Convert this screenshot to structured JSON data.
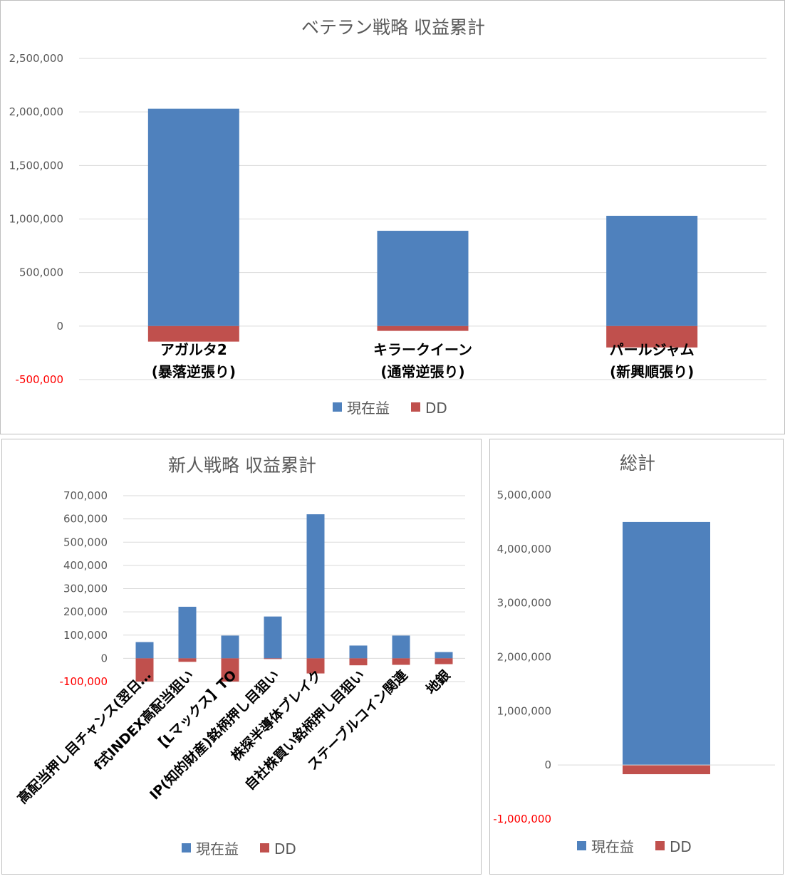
{
  "colors": {
    "profit": "#4f81bd",
    "dd": "#c0504d",
    "negative_tick": "#ff0000"
  },
  "chart_data": [
    {
      "id": "veteran",
      "type": "bar",
      "stacked": true,
      "title": "ベテラン戦略 収益累計",
      "categories": [
        [
          "アガルタ2",
          "(暴落逆張り)"
        ],
        [
          "キラークイーン",
          "(通常逆張り)"
        ],
        [
          "パールジャム",
          "(新興順張り)"
        ]
      ],
      "series": [
        {
          "name": "現在益",
          "values": [
            2030000,
            890000,
            1030000
          ]
        },
        {
          "name": "DD",
          "values": [
            -145000,
            -45000,
            -200000
          ]
        }
      ],
      "ylim": [
        -500000,
        2500000
      ],
      "yticks": [
        "-500,000",
        "0",
        "500,000",
        "1,000,000",
        "1,500,000",
        "2,000,000",
        "2,500,000"
      ],
      "ytick_values": [
        -500000,
        0,
        500000,
        1000000,
        1500000,
        2000000,
        2500000
      ],
      "grid": true,
      "legend": "bottom"
    },
    {
      "id": "newcomer",
      "type": "bar",
      "stacked": true,
      "title": "新人戦略 収益累計",
      "categories": [
        "高配当押し目チャンス(翌日…",
        "f式INDEX高配当狙い",
        "【Lマックス】TO",
        "IP(知的財産)銘柄押し目狙い",
        "株探半導体ブレイク",
        "自社株買い銘柄押し目狙い",
        "ステーブルコイン関連",
        "地銀"
      ],
      "series": [
        {
          "name": "現在益",
          "values": [
            70000,
            222000,
            98000,
            180000,
            620000,
            55000,
            98000,
            27000
          ]
        },
        {
          "name": "DD",
          "values": [
            -100000,
            -15000,
            -100000,
            -3000,
            -65000,
            -30000,
            -28000,
            -25000
          ]
        }
      ],
      "ylim": [
        -100000,
        700000
      ],
      "yticks": [
        "-100,000",
        "0",
        "100,000",
        "200,000",
        "300,000",
        "400,000",
        "500,000",
        "600,000",
        "700,000"
      ],
      "ytick_values": [
        -100000,
        0,
        100000,
        200000,
        300000,
        400000,
        500000,
        600000,
        700000
      ],
      "grid": true,
      "legend": "bottom"
    },
    {
      "id": "total",
      "type": "bar",
      "stacked": true,
      "title": "総計",
      "categories": [
        ""
      ],
      "series": [
        {
          "name": "現在益",
          "values": [
            4500000
          ]
        },
        {
          "name": "DD",
          "values": [
            -170000
          ]
        }
      ],
      "ylim": [
        -1000000,
        5000000
      ],
      "yticks": [
        "-1,000,000",
        "0",
        "1,000,000",
        "2,000,000",
        "3,000,000",
        "4,000,000",
        "5,000,000"
      ],
      "ytick_values": [
        -1000000,
        0,
        1000000,
        2000000,
        3000000,
        4000000,
        5000000
      ],
      "grid": false,
      "legend": "bottom"
    }
  ]
}
